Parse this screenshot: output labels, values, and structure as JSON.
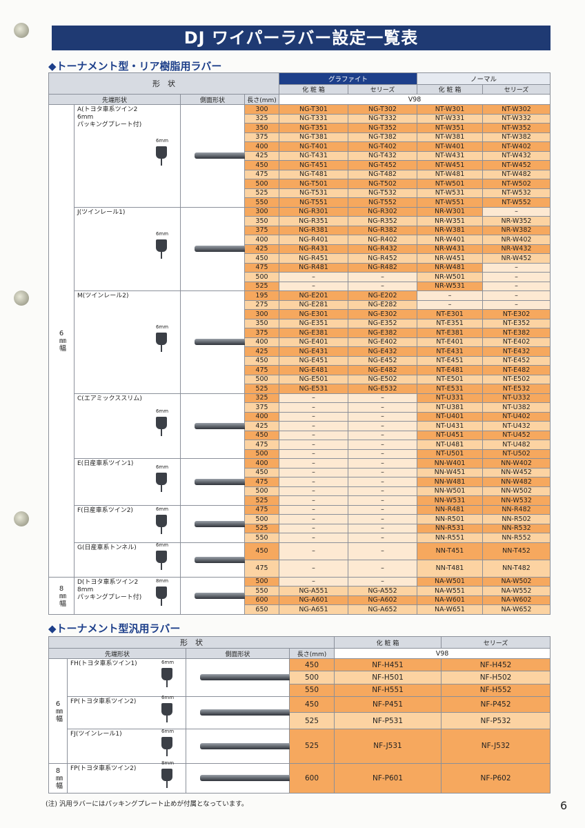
{
  "header": {
    "title": "DJ ワイパーラバー設定一覧表"
  },
  "sections": [
    {
      "heading": "◆トーナメント型・リア樹脂用ラバー",
      "table": {
        "headers": {
          "shape": "形　状",
          "graphite": "グラファイト",
          "normal": "ノーマル",
          "box": "化 粧 箱",
          "cerise": "セリーズ",
          "box2": "化 粧 箱",
          "cerise2": "セリーズ",
          "tip": "先端形状",
          "side": "側面形状",
          "length": "長さ(mm)",
          "v98": "V98"
        },
        "widths": [
          {
            "label": "6㎜幅",
            "groups": [
              {
                "name": "A(トヨタ車系ツイン2\n6mm\nパッキングプレート付)",
                "tip": "6mm",
                "rows": [
                  [
                    300,
                    "NG-T301",
                    "NG-T302",
                    "NT-W301",
                    "NT-W302"
                  ],
                  [
                    325,
                    "NG-T331",
                    "NG-T332",
                    "NT-W331",
                    "NT-W332"
                  ],
                  [
                    350,
                    "NG-T351",
                    "NG-T352",
                    "NT-W351",
                    "NT-W352"
                  ],
                  [
                    375,
                    "NG-T381",
                    "NG-T382",
                    "NT-W381",
                    "NT-W382"
                  ],
                  [
                    400,
                    "NG-T401",
                    "NG-T402",
                    "NT-W401",
                    "NT-W402"
                  ],
                  [
                    425,
                    "NG-T431",
                    "NG-T432",
                    "NT-W431",
                    "NT-W432"
                  ],
                  [
                    450,
                    "NG-T451",
                    "NG-T452",
                    "NT-W451",
                    "NT-W452"
                  ],
                  [
                    475,
                    "NG-T481",
                    "NG-T482",
                    "NT-W481",
                    "NT-W482"
                  ],
                  [
                    500,
                    "NG-T501",
                    "NG-T502",
                    "NT-W501",
                    "NT-W502"
                  ],
                  [
                    525,
                    "NG-T531",
                    "NG-T532",
                    "NT-W531",
                    "NT-W532"
                  ],
                  [
                    550,
                    "NG-T551",
                    "NG-T552",
                    "NT-W551",
                    "NT-W552"
                  ]
                ]
              },
              {
                "name": "J(ツインレール1)",
                "tip": "6mm",
                "rows": [
                  [
                    300,
                    "NG-R301",
                    "NG-R302",
                    "NR-W301",
                    "–"
                  ],
                  [
                    350,
                    "NG-R351",
                    "NG-R352",
                    "NR-W351",
                    "NR-W352"
                  ],
                  [
                    375,
                    "NG-R381",
                    "NG-R382",
                    "NR-W381",
                    "NR-W382"
                  ],
                  [
                    400,
                    "NG-R401",
                    "NG-R402",
                    "NR-W401",
                    "NR-W402"
                  ],
                  [
                    425,
                    "NG-R431",
                    "NG-R432",
                    "NR-W431",
                    "NR-W432"
                  ],
                  [
                    450,
                    "NG-R451",
                    "NG-R452",
                    "NR-W451",
                    "NR-W452"
                  ],
                  [
                    475,
                    "NG-R481",
                    "NG-R482",
                    "NR-W481",
                    "–"
                  ],
                  [
                    500,
                    "–",
                    "–",
                    "NR-W501",
                    "–"
                  ],
                  [
                    525,
                    "–",
                    "–",
                    "NR-W531",
                    "–"
                  ]
                ]
              },
              {
                "name": "M(ツインレール2)",
                "tip": "6mm",
                "rows": [
                  [
                    195,
                    "NG-E201",
                    "NG-E202",
                    "–",
                    "–"
                  ],
                  [
                    275,
                    "NG-E281",
                    "NG-E282",
                    "–",
                    "–"
                  ],
                  [
                    300,
                    "NG-E301",
                    "NG-E302",
                    "NT-E301",
                    "NT-E302"
                  ],
                  [
                    350,
                    "NG-E351",
                    "NG-E352",
                    "NT-E351",
                    "NT-E352"
                  ],
                  [
                    375,
                    "NG-E381",
                    "NG-E382",
                    "NT-E381",
                    "NT-E382"
                  ],
                  [
                    400,
                    "NG-E401",
                    "NG-E402",
                    "NT-E401",
                    "NT-E402"
                  ],
                  [
                    425,
                    "NG-E431",
                    "NG-E432",
                    "NT-E431",
                    "NT-E432"
                  ],
                  [
                    450,
                    "NG-E451",
                    "NG-E452",
                    "NT-E451",
                    "NT-E452"
                  ],
                  [
                    475,
                    "NG-E481",
                    "NG-E482",
                    "NT-E481",
                    "NT-E482"
                  ],
                  [
                    500,
                    "NG-E501",
                    "NG-E502",
                    "NT-E501",
                    "NT-E502"
                  ],
                  [
                    525,
                    "NG-E531",
                    "NG-E532",
                    "NT-E531",
                    "NT-E532"
                  ]
                ]
              },
              {
                "name": "C(エアミックススリム)",
                "tip": "6mm",
                "rows": [
                  [
                    325,
                    "–",
                    "–",
                    "NT-U331",
                    "NT-U332"
                  ],
                  [
                    375,
                    "–",
                    "–",
                    "NT-U381",
                    "NT-U382"
                  ],
                  [
                    400,
                    "–",
                    "–",
                    "NT-U401",
                    "NT-U402"
                  ],
                  [
                    425,
                    "–",
                    "–",
                    "NT-U431",
                    "NT-U432"
                  ],
                  [
                    450,
                    "–",
                    "–",
                    "NT-U451",
                    "NT-U452"
                  ],
                  [
                    475,
                    "–",
                    "–",
                    "NT-U481",
                    "NT-U482"
                  ],
                  [
                    500,
                    "–",
                    "–",
                    "NT-U501",
                    "NT-U502"
                  ]
                ]
              },
              {
                "name": "E(日産車系ツイン1)",
                "tip": "6mm",
                "rows": [
                  [
                    400,
                    "–",
                    "–",
                    "NN-W401",
                    "NN-W402"
                  ],
                  [
                    450,
                    "–",
                    "–",
                    "NN-W451",
                    "NN-W452"
                  ],
                  [
                    475,
                    "–",
                    "–",
                    "NN-W481",
                    "NN-W482"
                  ],
                  [
                    500,
                    "–",
                    "–",
                    "NN-W501",
                    "NN-W502"
                  ],
                  [
                    525,
                    "–",
                    "–",
                    "NN-W531",
                    "NN-W532"
                  ]
                ]
              },
              {
                "name": "F(日産車系ツイン2)",
                "tip": "6mm",
                "rows": [
                  [
                    475,
                    "–",
                    "–",
                    "NN-R481",
                    "NN-R482"
                  ],
                  [
                    500,
                    "–",
                    "–",
                    "NN-R501",
                    "NN-R502"
                  ],
                  [
                    525,
                    "–",
                    "–",
                    "NN-R531",
                    "NN-R532"
                  ],
                  [
                    550,
                    "–",
                    "–",
                    "NN-R551",
                    "NN-R552"
                  ]
                ]
              },
              {
                "name": "G(日産車系トンネル)",
                "tip": "6mm",
                "rows": [
                  [
                    450,
                    "–",
                    "–",
                    "NN-T451",
                    "NN-T452"
                  ],
                  [
                    475,
                    "–",
                    "–",
                    "NN-T481",
                    "NN-T482"
                  ]
                ]
              }
            ]
          },
          {
            "label": "8㎜幅",
            "groups": [
              {
                "name": "D(トヨタ車系ツイン2\n8mm\nパッキングプレート付)",
                "tip": "8mm",
                "rows": [
                  [
                    500,
                    "–",
                    "–",
                    "NA-W501",
                    "NA-W502"
                  ],
                  [
                    550,
                    "NG-A551",
                    "NG-A552",
                    "NA-W551",
                    "NA-W552"
                  ],
                  [
                    600,
                    "NG-A601",
                    "NG-A602",
                    "NA-W601",
                    "NA-W602"
                  ],
                  [
                    650,
                    "NG-A651",
                    "NG-A652",
                    "NA-W651",
                    "NA-W652"
                  ]
                ]
              }
            ]
          }
        ]
      }
    },
    {
      "heading": "◆トーナメント型汎用ラバー",
      "table": {
        "headers": {
          "shape": "形　状",
          "box": "化 粧 箱",
          "cerise": "セリーズ",
          "tip": "先端形状",
          "side": "側面形状",
          "length": "長さ(mm)",
          "v98": "V98"
        },
        "widths": [
          {
            "label": "6㎜幅",
            "groups": [
              {
                "name": "FH(トヨタ車系ツイン1)",
                "tip": "6mm",
                "rows": [
                  [
                    450,
                    "NF-H451",
                    "NF-H452"
                  ],
                  [
                    500,
                    "NF-H501",
                    "NF-H502"
                  ],
                  [
                    550,
                    "NF-H551",
                    "NF-H552"
                  ]
                ]
              },
              {
                "name": "FP(トヨタ車系ツイン2)",
                "tip": "6mm",
                "rows": [
                  [
                    450,
                    "NF-P451",
                    "NF-P452"
                  ],
                  [
                    525,
                    "NF-P531",
                    "NF-P532"
                  ]
                ]
              },
              {
                "name": "FJ(ツインレール1)",
                "tip": "6mm",
                "rows": [
                  [
                    525,
                    "NF-J531",
                    "NF-J532"
                  ]
                ]
              }
            ]
          },
          {
            "label": "8㎜幅",
            "groups": [
              {
                "name": "FP(トヨタ車系ツイン2)",
                "tip": "8mm",
                "rows": [
                  [
                    600,
                    "NF-P601",
                    "NF-P602"
                  ]
                ]
              }
            ]
          }
        ]
      }
    }
  ],
  "note": "(注) 汎用ラバーにはパッキングプレート止めが付属となっています。",
  "page_number": "6"
}
